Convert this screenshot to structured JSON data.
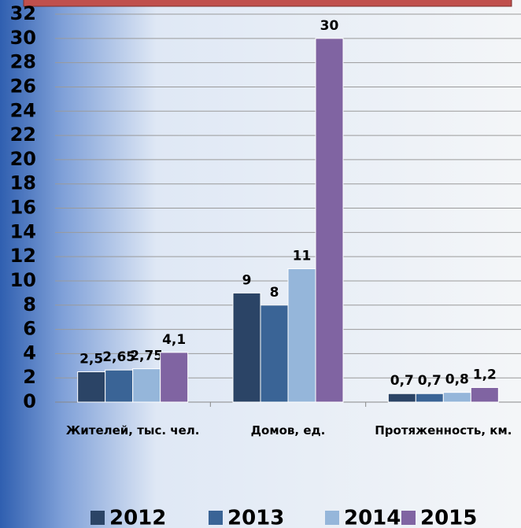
{
  "chart_data": {
    "type": "bar",
    "categories": [
      "Жителей, тыс. чел.",
      "Домов, ед.",
      "Протяженность, км."
    ],
    "series": [
      {
        "name": "2012",
        "color": "#2b4466",
        "values": [
          2.5,
          9,
          0.7
        ],
        "value_labels": [
          "2,5",
          "9",
          "0,7"
        ]
      },
      {
        "name": "2013",
        "color": "#3a6496",
        "values": [
          2.65,
          8,
          0.7
        ],
        "value_labels": [
          "2,65",
          "8",
          "0,7"
        ]
      },
      {
        "name": "2014",
        "color": "#95b6da",
        "values": [
          2.75,
          11,
          0.8
        ],
        "value_labels": [
          "2,75",
          "11",
          "0,8"
        ]
      },
      {
        "name": "2015",
        "color": "#8064a2",
        "values": [
          4.1,
          30,
          1.2
        ],
        "value_labels": [
          "4,1",
          "30",
          "1,2"
        ]
      }
    ],
    "ylim": [
      0,
      32
    ],
    "yticks": [
      0,
      2,
      4,
      6,
      8,
      10,
      12,
      14,
      16,
      18,
      20,
      22,
      24,
      26,
      28,
      30,
      32
    ],
    "grid": true
  }
}
